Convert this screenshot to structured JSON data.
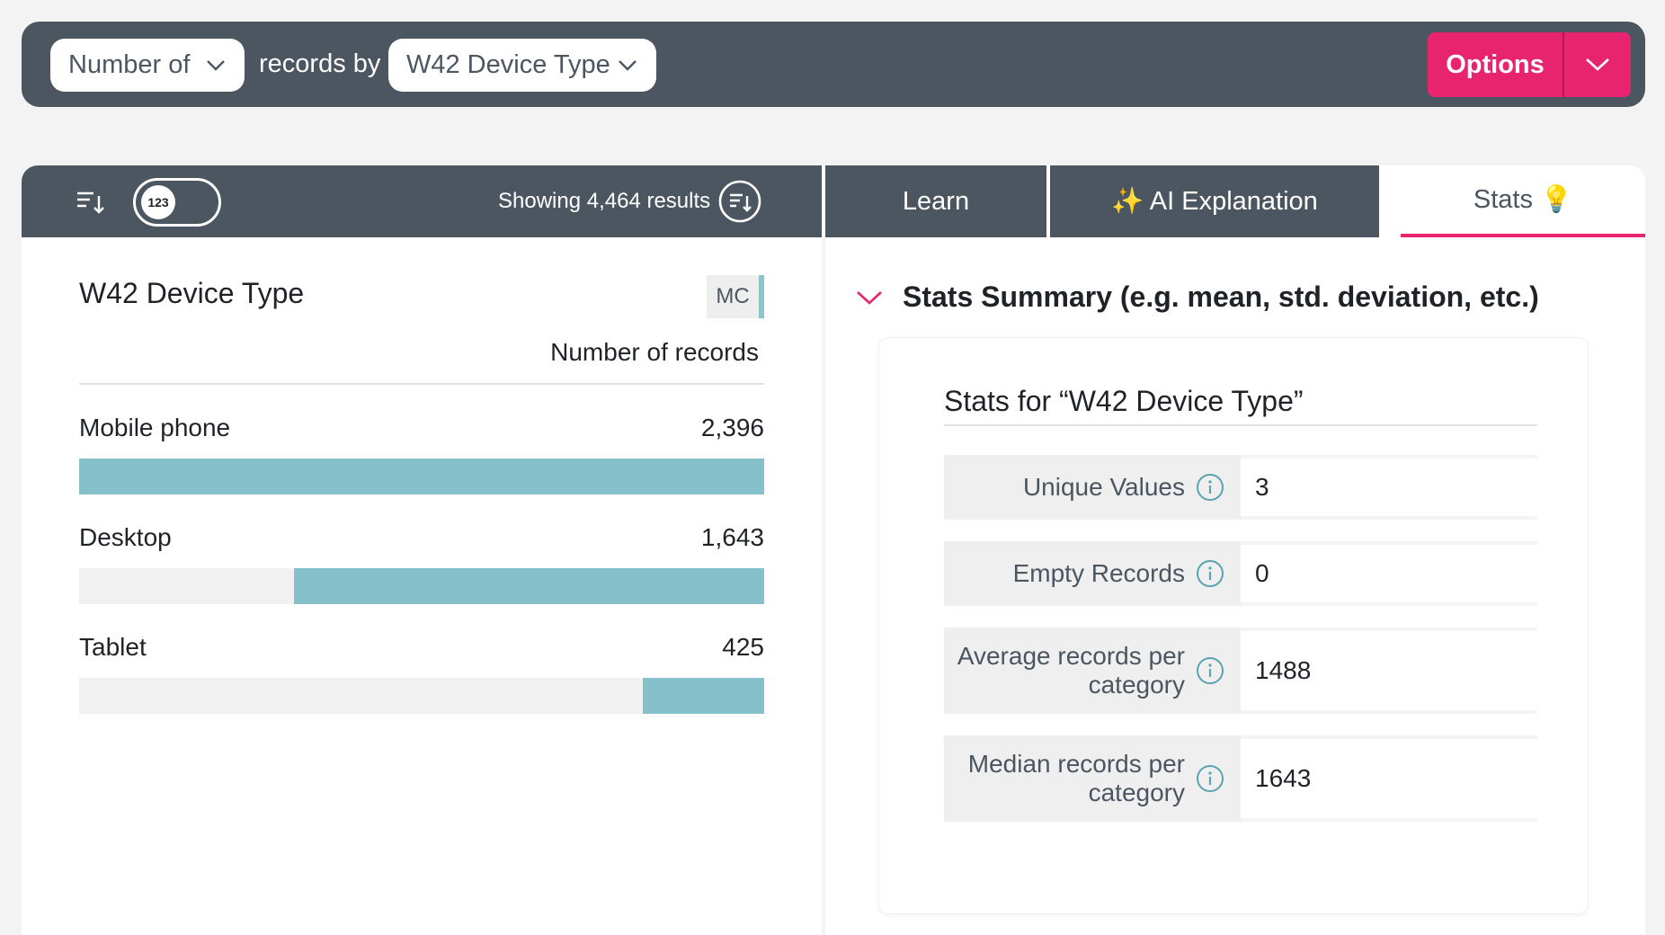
{
  "querybar": {
    "count_select": "Number of",
    "connector": "records by",
    "field_select": "W42 Device Type",
    "options_label": "Options"
  },
  "toolbar": {
    "toggle_label": "123",
    "showing_text": "Showing 4,464 results"
  },
  "tabs": [
    {
      "label": "Learn"
    },
    {
      "label": "✨ AI Explanation"
    },
    {
      "label": "Stats 💡"
    }
  ],
  "field": {
    "title": "W42 Device Type",
    "badge": "MC",
    "column_header": "Number of records"
  },
  "chart_data": {
    "type": "bar",
    "categories": [
      "Mobile phone",
      "Desktop",
      "Tablet"
    ],
    "values": [
      2396,
      1643,
      425
    ],
    "value_labels": [
      "2,396",
      "1,643",
      "425"
    ],
    "ylim": [
      0,
      2396
    ],
    "color": "#86c1cb"
  },
  "stats": {
    "section_title": "Stats Summary (e.g. mean, std. deviation, etc.)",
    "card_title": "Stats for “W42 Device Type”",
    "rows": [
      {
        "key": "Unique Values",
        "value": "3"
      },
      {
        "key": "Empty Records",
        "value": "0"
      },
      {
        "key": "Average records per category",
        "value": "1488"
      },
      {
        "key": "Median records per category",
        "value": "1643"
      }
    ]
  },
  "colors": {
    "accent": "#e8246f",
    "header": "#4c5661",
    "bar": "#86c1cb",
    "info": "#5aa3b0"
  }
}
